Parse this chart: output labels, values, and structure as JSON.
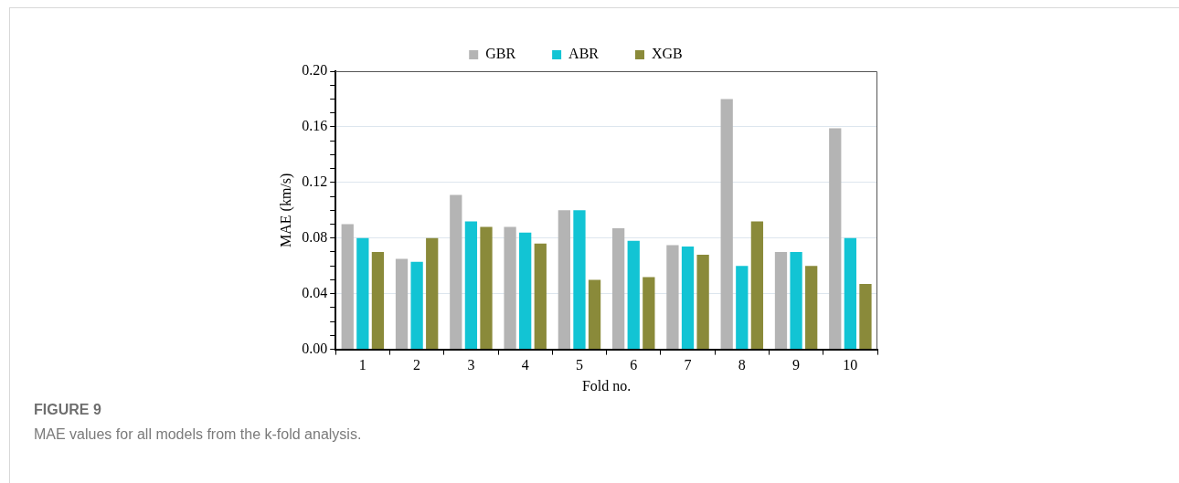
{
  "chart_data": {
    "type": "bar",
    "xlabel": "Fold no.",
    "ylabel": "MAE (km/s)",
    "categories": [
      "1",
      "2",
      "3",
      "4",
      "5",
      "6",
      "7",
      "8",
      "9",
      "10"
    ],
    "series": [
      {
        "name": "GBR",
        "color": "#b4b4b4",
        "values": [
          0.09,
          0.065,
          0.111,
          0.088,
          0.1,
          0.087,
          0.075,
          0.18,
          0.07,
          0.159
        ]
      },
      {
        "name": "ABR",
        "color": "#12c4d4",
        "values": [
          0.08,
          0.063,
          0.092,
          0.084,
          0.1,
          0.078,
          0.074,
          0.06,
          0.07,
          0.08
        ]
      },
      {
        "name": "XGB",
        "color": "#8a8a3a",
        "values": [
          0.07,
          0.08,
          0.088,
          0.076,
          0.05,
          0.052,
          0.068,
          0.092,
          0.06,
          0.047
        ]
      }
    ],
    "ylim": [
      0,
      0.2
    ],
    "yticks": [
      {
        "value": 0,
        "label": "0.00"
      },
      {
        "value": 0.01,
        "label": null
      },
      {
        "value": 0.02,
        "label": null
      },
      {
        "value": 0.03,
        "label": null
      },
      {
        "value": 0.04,
        "label": "0.04"
      },
      {
        "value": 0.05,
        "label": null
      },
      {
        "value": 0.06,
        "label": null
      },
      {
        "value": 0.07,
        "label": null
      },
      {
        "value": 0.08,
        "label": "0.08"
      },
      {
        "value": 0.09,
        "label": null
      },
      {
        "value": 0.1,
        "label": null
      },
      {
        "value": 0.11,
        "label": null
      },
      {
        "value": 0.12,
        "label": "0.12"
      },
      {
        "value": 0.13,
        "label": null
      },
      {
        "value": 0.14,
        "label": null
      },
      {
        "value": 0.15,
        "label": null
      },
      {
        "value": 0.16,
        "label": "0.16"
      },
      {
        "value": 0.17,
        "label": null
      },
      {
        "value": 0.18,
        "label": null
      },
      {
        "value": 0.19,
        "label": null
      },
      {
        "value": 0.2,
        "label": "0.20"
      }
    ],
    "grid": "y",
    "legend": "top",
    "annotations": [
      "FIGURE 9",
      "MAE values for all models from the k-fold analysis."
    ]
  }
}
